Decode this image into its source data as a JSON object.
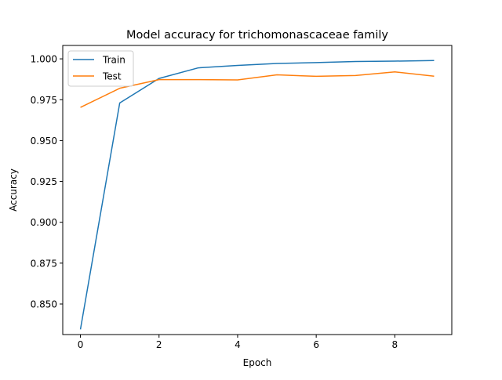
{
  "chart_data": {
    "type": "line",
    "title": "Model accuracy for trichomonascaceae family",
    "xlabel": "Epoch",
    "ylabel": "Accuracy",
    "x": [
      0,
      1,
      2,
      3,
      4,
      5,
      6,
      7,
      8,
      9
    ],
    "xlim": [
      -0.45,
      9.45
    ],
    "ylim": [
      0.8313,
      1.0082
    ],
    "x_ticks": [
      "0",
      "2",
      "4",
      "6",
      "8"
    ],
    "y_ticks": [
      "0.850",
      "0.875",
      "0.900",
      "0.925",
      "0.950",
      "0.975",
      "1.000"
    ],
    "series": [
      {
        "name": "Train",
        "color": "#1f77b4",
        "values": [
          0.8345,
          0.973,
          0.988,
          0.9945,
          0.996,
          0.9972,
          0.9977,
          0.9984,
          0.9986,
          0.999
        ]
      },
      {
        "name": "Test",
        "color": "#ff7f0e",
        "values": [
          0.9703,
          0.982,
          0.9873,
          0.9873,
          0.9871,
          0.9902,
          0.9893,
          0.9898,
          0.992,
          0.9894
        ]
      }
    ],
    "legend": "top-left",
    "grid": false
  }
}
